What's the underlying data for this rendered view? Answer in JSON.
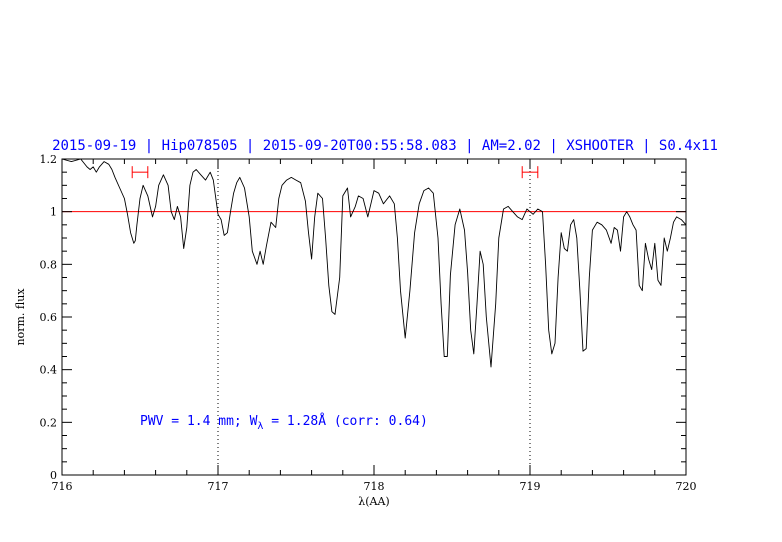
{
  "chart_data": {
    "type": "line",
    "title": "2015-09-19 | Hip078505 | 2015-09-20T00:55:58.083 | AM=2.02 | XSHOOTER | S0.4x11",
    "xlabel": "λ(AA)",
    "ylabel": "norm. flux",
    "xlim": [
      716,
      720
    ],
    "ylim": [
      0,
      1.2
    ],
    "x_ticks": [
      716,
      717,
      718,
      719,
      720
    ],
    "y_ticks": [
      0,
      0.2,
      0.4,
      0.6,
      0.8,
      1,
      1.2
    ],
    "x_tick_labels": [
      "716",
      "717",
      "718",
      "719",
      "720"
    ],
    "y_tick_labels": [
      "0",
      "0.2",
      "0.4",
      "0.6",
      "0.8",
      "1",
      "1.2"
    ],
    "reference_line": {
      "y": 1.0,
      "color": "#ff0000"
    },
    "vertical_markers": [
      717.0,
      719.0
    ],
    "intervals": [
      {
        "x0": 716.45,
        "x1": 716.55,
        "y": 1.15,
        "color": "#ff0000"
      },
      {
        "x0": 718.95,
        "x1": 719.05,
        "y": 1.15,
        "color": "#ff0000"
      }
    ],
    "annotation": {
      "prefix": "PWV = 1.4 mm; W",
      "subscript": "λ",
      "suffix": " = 1.28Å (corr: 0.64)",
      "x": 716.5,
      "y": 0.19
    },
    "series": [
      {
        "color": "#000000",
        "x": [
          716.0,
          716.06,
          716.12,
          716.16,
          716.18,
          716.2,
          716.22,
          716.24,
          716.27,
          716.3,
          716.32,
          716.34,
          716.37,
          716.4,
          716.42,
          716.44,
          716.46,
          716.47,
          716.48,
          716.5,
          716.52,
          716.55,
          716.58,
          716.6,
          716.62,
          716.65,
          716.68,
          716.7,
          716.72,
          716.74,
          716.76,
          716.78,
          716.8,
          716.82,
          716.84,
          716.86,
          716.89,
          716.92,
          716.95,
          716.97,
          717.0,
          717.02,
          717.04,
          717.06,
          717.08,
          717.1,
          717.12,
          717.14,
          717.17,
          717.2,
          717.22,
          717.25,
          717.27,
          717.29,
          717.31,
          717.34,
          717.37,
          717.39,
          717.41,
          717.44,
          717.47,
          717.5,
          717.53,
          717.56,
          717.58,
          717.6,
          717.62,
          717.64,
          717.67,
          717.69,
          717.71,
          717.73,
          717.75,
          717.78,
          717.8,
          717.83,
          717.85,
          717.88,
          717.9,
          717.93,
          717.96,
          717.98,
          718.0,
          718.03,
          718.06,
          718.1,
          718.13,
          718.15,
          718.17,
          718.2,
          718.23,
          718.26,
          718.29,
          718.32,
          718.35,
          718.38,
          718.41,
          718.43,
          718.45,
          718.47,
          718.49,
          718.52,
          718.55,
          718.58,
          718.6,
          718.62,
          718.64,
          718.66,
          718.68,
          718.7,
          718.72,
          718.75,
          718.78,
          718.8,
          718.83,
          718.86,
          718.89,
          718.92,
          718.95,
          718.98,
          719.0,
          719.02,
          719.05,
          719.08,
          719.1,
          719.12,
          719.14,
          719.16,
          719.18,
          719.2,
          719.22,
          719.24,
          719.26,
          719.28,
          719.3,
          719.32,
          719.34,
          719.36,
          719.38,
          719.4,
          719.43,
          719.46,
          719.49,
          719.52,
          719.54,
          719.56,
          719.58,
          719.6,
          719.62,
          719.64,
          719.66,
          719.68,
          719.7,
          719.72,
          719.74,
          719.76,
          719.78,
          719.8,
          719.82,
          719.84,
          719.86,
          719.88,
          719.9,
          719.92,
          719.94,
          719.97,
          720.0
        ],
        "y": [
          1.2,
          1.19,
          1.2,
          1.17,
          1.16,
          1.17,
          1.15,
          1.17,
          1.19,
          1.18,
          1.16,
          1.13,
          1.09,
          1.05,
          0.99,
          0.92,
          0.88,
          0.89,
          0.95,
          1.05,
          1.1,
          1.06,
          0.98,
          1.02,
          1.1,
          1.14,
          1.1,
          1.0,
          0.97,
          1.02,
          0.98,
          0.86,
          0.94,
          1.1,
          1.15,
          1.16,
          1.14,
          1.12,
          1.15,
          1.12,
          0.99,
          0.97,
          0.91,
          0.92,
          1.0,
          1.07,
          1.11,
          1.13,
          1.09,
          0.98,
          0.85,
          0.8,
          0.85,
          0.8,
          0.87,
          0.96,
          0.94,
          1.05,
          1.1,
          1.12,
          1.13,
          1.12,
          1.11,
          1.04,
          0.92,
          0.82,
          0.98,
          1.07,
          1.05,
          0.9,
          0.72,
          0.62,
          0.61,
          0.75,
          1.06,
          1.09,
          0.98,
          1.02,
          1.06,
          1.05,
          0.98,
          1.03,
          1.08,
          1.07,
          1.03,
          1.06,
          1.03,
          0.9,
          0.7,
          0.52,
          0.7,
          0.92,
          1.03,
          1.08,
          1.09,
          1.07,
          0.9,
          0.65,
          0.45,
          0.45,
          0.76,
          0.95,
          1.01,
          0.93,
          0.77,
          0.55,
          0.46,
          0.65,
          0.85,
          0.8,
          0.6,
          0.41,
          0.65,
          0.9,
          1.01,
          1.02,
          1.0,
          0.98,
          0.97,
          1.01,
          1.0,
          0.99,
          1.01,
          1.0,
          0.8,
          0.55,
          0.46,
          0.5,
          0.75,
          0.92,
          0.86,
          0.85,
          0.95,
          0.97,
          0.9,
          0.7,
          0.47,
          0.48,
          0.75,
          0.93,
          0.96,
          0.95,
          0.93,
          0.88,
          0.94,
          0.93,
          0.85,
          0.98,
          1.0,
          0.98,
          0.95,
          0.93,
          0.72,
          0.7,
          0.88,
          0.82,
          0.78,
          0.88,
          0.74,
          0.72,
          0.9,
          0.85,
          0.9,
          0.96,
          0.98,
          0.97,
          0.95
        ]
      }
    ]
  }
}
